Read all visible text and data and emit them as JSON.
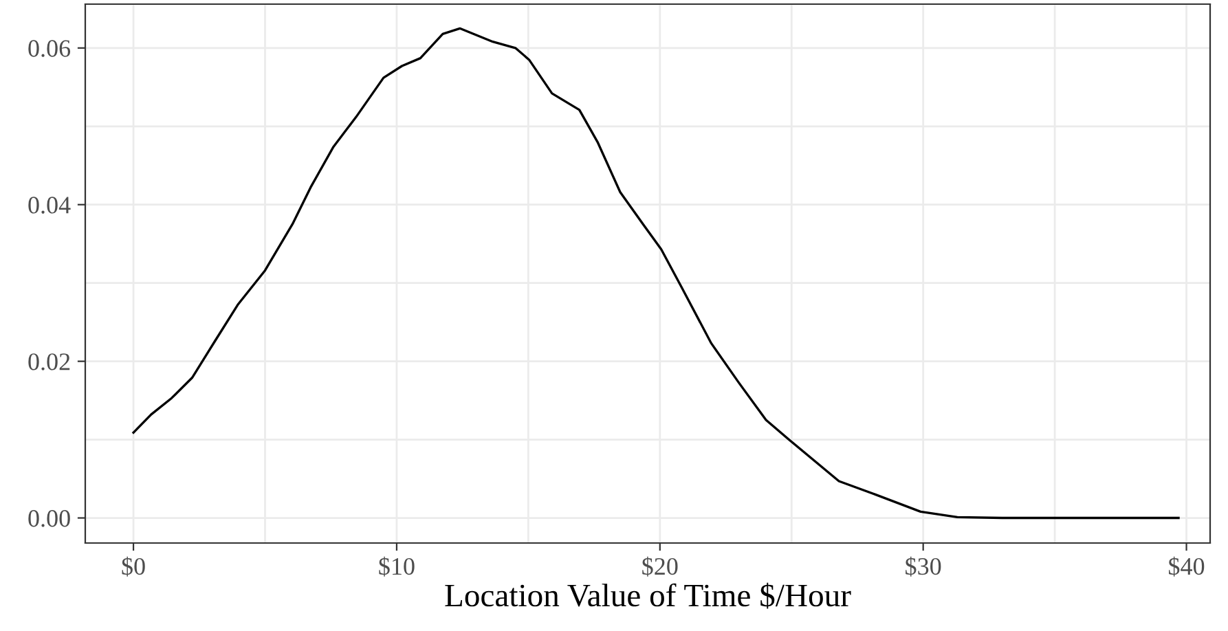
{
  "chart_data": {
    "type": "line",
    "xlabel": "Location Value of Time $/Hour",
    "xlim": [
      -1.83,
      40.9
    ],
    "ylim": [
      -0.0032,
      0.0656
    ],
    "xticks": [
      {
        "value": 0,
        "label": "$0"
      },
      {
        "value": 10,
        "label": "$10"
      },
      {
        "value": 20,
        "label": "$20"
      },
      {
        "value": 30,
        "label": "$30"
      },
      {
        "value": 40,
        "label": "$40"
      }
    ],
    "yticks": [
      {
        "value": 0,
        "label": "0.00"
      },
      {
        "value": 0.02,
        "label": "0.02"
      },
      {
        "value": 0.04,
        "label": "0.04"
      },
      {
        "value": 0.06,
        "label": "0.06"
      }
    ],
    "grid": true,
    "marker": "none",
    "line_style": "solid",
    "series": [
      {
        "color": "#000000",
        "x": [
          0,
          0.67,
          1.45,
          2.23,
          3.1,
          3.96,
          5,
          6.04,
          6.73,
          7.6,
          8.46,
          9.5,
          10.2,
          10.9,
          11.75,
          12.4,
          13.65,
          14.51,
          15.03,
          15.9,
          16.94,
          17.63,
          18.49,
          19.36,
          20.05,
          20.8,
          21.95,
          22.99,
          24.03,
          24.9,
          26.8,
          28.18,
          29.9,
          31.3,
          33,
          36,
          39.7
        ],
        "values": [
          0.0109,
          0.0132,
          0.0153,
          0.0179,
          0.0226,
          0.0272,
          0.0316,
          0.0375,
          0.0422,
          0.0474,
          0.0512,
          0.0562,
          0.0577,
          0.0587,
          0.0618,
          0.0625,
          0.0608,
          0.06,
          0.0585,
          0.0542,
          0.0521,
          0.048,
          0.0416,
          0.0375,
          0.0343,
          0.0296,
          0.0223,
          0.0173,
          0.0125,
          0.01,
          0.0047,
          0.003,
          0.0008,
          0.0001,
          0.0,
          0.0,
          0.0
        ]
      }
    ]
  }
}
